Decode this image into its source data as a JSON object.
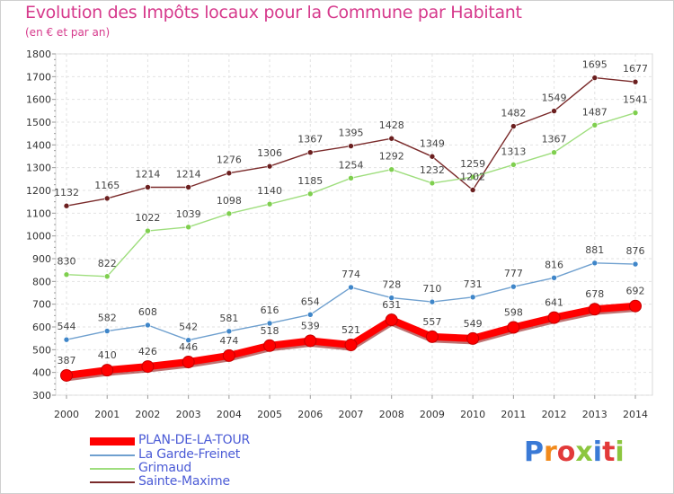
{
  "header": {
    "title": "Evolution des Impôts locaux pour la Commune par Habitant",
    "subtitle": "(en € et par an)"
  },
  "brand": {
    "text": "Proxiti",
    "colors": [
      "#3a7ad6",
      "#f28a1c",
      "#e23a3a",
      "#8cc63f",
      "#3a7ad6",
      "#e23a3a",
      "#8cc63f"
    ]
  },
  "chart_data": {
    "type": "line",
    "x": [
      2000,
      2001,
      2002,
      2003,
      2004,
      2005,
      2006,
      2007,
      2008,
      2009,
      2010,
      2011,
      2012,
      2013,
      2014
    ],
    "ylim": [
      300,
      1800
    ],
    "yticks": [
      300,
      400,
      500,
      600,
      700,
      800,
      900,
      1000,
      1100,
      1200,
      1300,
      1400,
      1500,
      1600,
      1700,
      1800
    ],
    "grid": true,
    "legend_position": "bottom-left",
    "series": [
      {
        "name": "Sainte-Maxime",
        "color": "#7a2a2a",
        "marker": "#6b1f1f",
        "values": [
          1132,
          1165,
          1214,
          1214,
          1276,
          1306,
          1367,
          1395,
          1428,
          1349,
          1202,
          1482,
          1549,
          1695,
          1677
        ]
      },
      {
        "name": "Grimaud",
        "color": "#9fde7e",
        "marker": "#7fcf4f",
        "values": [
          830,
          822,
          1022,
          1039,
          1098,
          1140,
          1185,
          1254,
          1292,
          1232,
          1259,
          1313,
          1367,
          1487,
          1541
        ]
      },
      {
        "name": "La Garde-Freinet",
        "color": "#6fa0cf",
        "marker": "#3f86c9",
        "values": [
          544,
          582,
          608,
          542,
          581,
          616,
          654,
          774,
          728,
          710,
          731,
          777,
          816,
          881,
          876
        ]
      },
      {
        "name": "PLAN-DE-LA-TOUR",
        "color": "#ff0000",
        "marker": "#ff0000",
        "bold": true,
        "values": [
          387,
          410,
          426,
          446,
          474,
          518,
          539,
          521,
          631,
          557,
          549,
          598,
          641,
          678,
          692
        ]
      }
    ]
  },
  "legend": [
    {
      "label": "PLAN-DE-LA-TOUR",
      "color": "#ff0000"
    },
    {
      "label": "La Garde-Freinet",
      "color": "#6fa0cf"
    },
    {
      "label": "Grimaud",
      "color": "#9fde7e"
    },
    {
      "label": "Sainte-Maxime",
      "color": "#7a2a2a"
    }
  ]
}
